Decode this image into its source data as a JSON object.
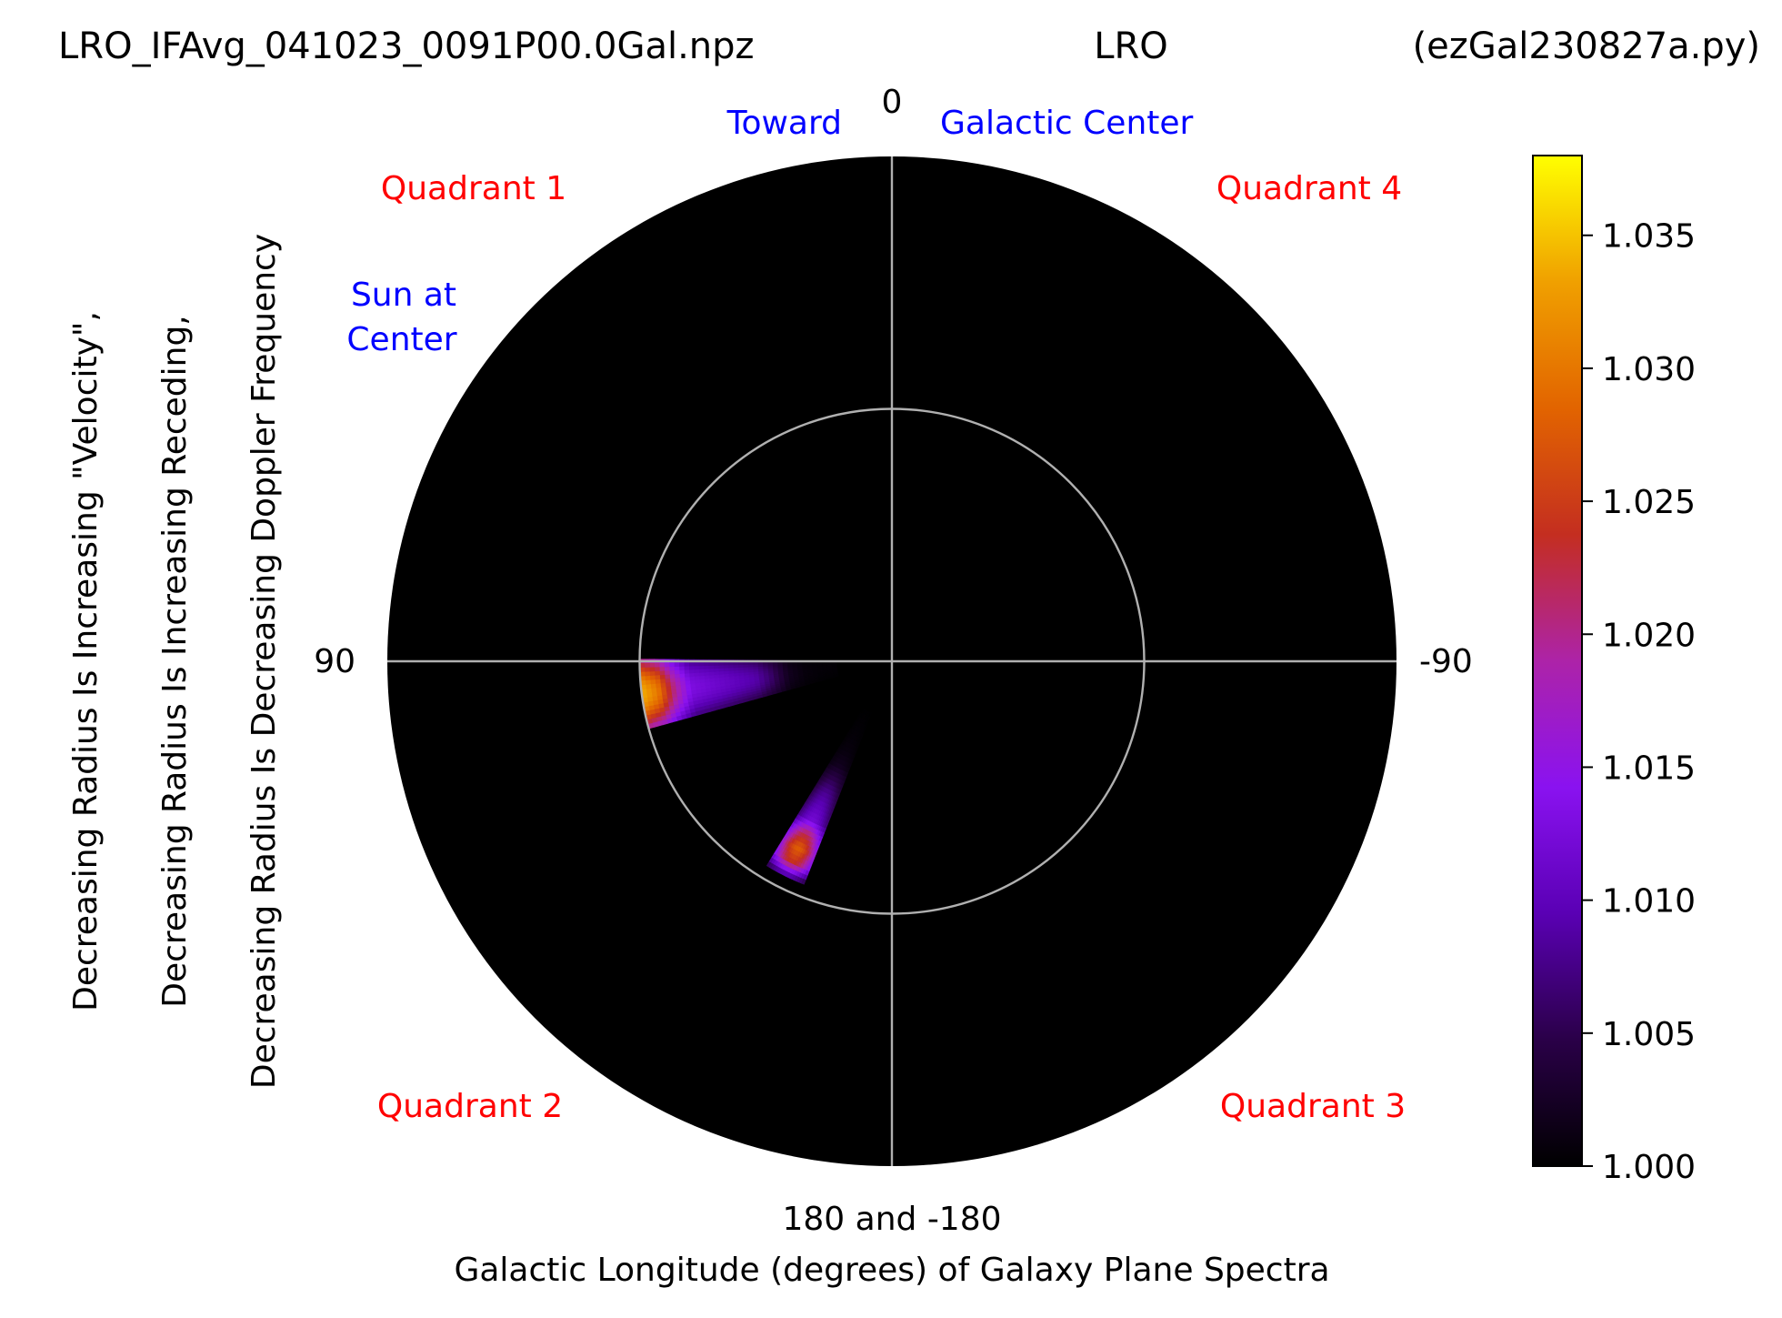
{
  "header": {
    "filename": "LRO_IFAvg_041023_0091P00.0Gal.npz",
    "station": "LRO",
    "script": "(ezGal230827a.py)"
  },
  "annotations": {
    "toward": "Toward",
    "galactic_center": "Galactic Center",
    "sun_line1": "Sun at",
    "sun_line2": "Center",
    "quadrant1": "Quadrant 1",
    "quadrant2": "Quadrant 2",
    "quadrant3": "Quadrant 3",
    "quadrant4": "Quadrant 4"
  },
  "colors": {
    "plot_background": "#000000",
    "grid": "#b0b0b0",
    "quadrant_text": "#ff0000",
    "direction_text": "#0000ff",
    "colormap": "gnuplot",
    "colormap_stops": [
      "#000000",
      "#2a0048",
      "#5a00b4",
      "#8a12f0",
      "#ad23a8",
      "#c42e20",
      "#e26400",
      "#f0a000",
      "#ffff00"
    ]
  },
  "chart_data": {
    "type": "heatmap",
    "projection": "polar",
    "angle_zero_location": "top",
    "angle_direction": "counterclockwise",
    "angular_ticks": [
      "0",
      "90",
      "180 and -180",
      "-90"
    ],
    "xlabel": "Galactic Longitude (degrees) of Galaxy Plane Spectra",
    "ylabel_lines": [
      "Decreasing Radius Is Increasing \"Velocity\",",
      "Decreasing Radius Is Increasing Receding,",
      "Decreasing Radius Is Decreasing Doppler Frequency"
    ],
    "radial_grid": [
      0.5
    ],
    "grid": true,
    "wedges": [
      {
        "longitude_start_deg": 89.5,
        "longitude_end_deg": 105.5,
        "r_inner": 0.11,
        "r_outer": 0.5,
        "profile": [
          1.0004,
          1.0005,
          1.0008,
          1.002,
          1.006,
          1.009,
          1.01,
          1.011,
          1.012,
          1.013,
          1.02,
          1.03,
          1.034
        ]
      },
      {
        "longitude_start_deg": 148.5,
        "longitude_end_deg": 158.5,
        "r_inner": 0.11,
        "r_outer": 0.475,
        "profile": [
          1.0002,
          1.0004,
          1.0006,
          1.001,
          1.002,
          1.005,
          1.008,
          1.01,
          1.012,
          1.022,
          1.028,
          1.024,
          1.007
        ]
      }
    ],
    "colorbar": {
      "min": 1.0,
      "max": 1.038,
      "ticks": [
        "1.000",
        "1.005",
        "1.010",
        "1.015",
        "1.020",
        "1.025",
        "1.030",
        "1.035"
      ]
    }
  }
}
